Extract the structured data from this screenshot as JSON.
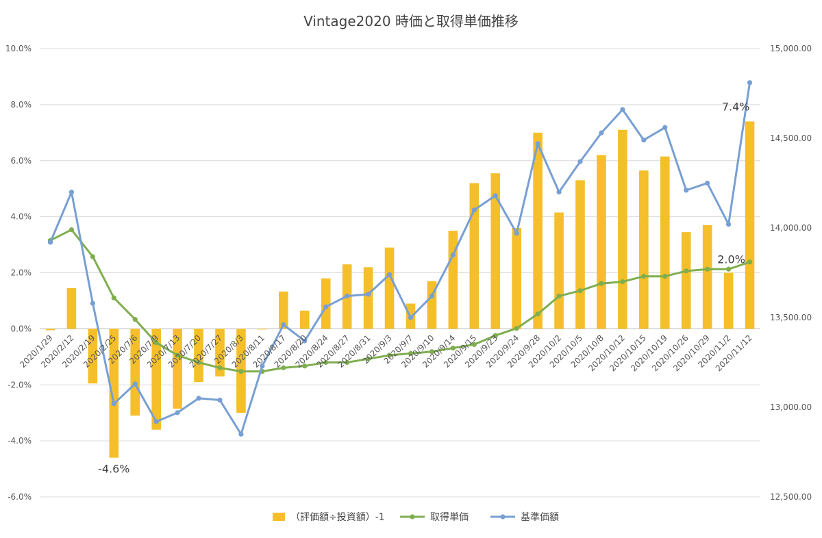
{
  "chart_data": {
    "type": "bar+line",
    "title": "Vintage2020 時価と取得単価推移",
    "categories": [
      "2020/1/29",
      "2020/2/12",
      "2020/2/19",
      "2020/2/25",
      "2020/7/6",
      "2020/7/9",
      "2020/7/13",
      "2020/7/20",
      "2020/7/27",
      "2020/8/3",
      "2020/8/11",
      "2020/8/17",
      "2020/8/20",
      "2020/8/24",
      "2020/8/27",
      "2020/8/31",
      "2020/9/3",
      "2020/9/7",
      "2020/9/10",
      "2020/9/14",
      "2020/9/15",
      "2020/9/23",
      "2020/9/24",
      "2020/9/28",
      "2020/10/2",
      "2020/10/5",
      "2020/10/8",
      "2020/10/12",
      "2020/10/15",
      "2020/10/19",
      "2020/10/26",
      "2020/10/29",
      "2020/11/2",
      "2020/11/12"
    ],
    "left_axis": {
      "ylim": [
        -0.06,
        0.1
      ],
      "ticks": [
        "-6.0%",
        "-4.0%",
        "-2.0%",
        "0.0%",
        "2.0%",
        "4.0%",
        "6.0%",
        "8.0%",
        "10.0%"
      ],
      "tick_values": [
        -0.06,
        -0.04,
        -0.02,
        0,
        0.02,
        0.04,
        0.06,
        0.08,
        0.1
      ]
    },
    "right_axis": {
      "ylim": [
        12500,
        15000
      ],
      "ticks": [
        "12,500.00",
        "13,000.00",
        "13,500.00",
        "14,000.00",
        "14,500.00",
        "15,000.00"
      ],
      "tick_values": [
        12500,
        13000,
        13500,
        14000,
        14500,
        15000
      ]
    },
    "grid": true,
    "legend_position": "bottom",
    "series": [
      {
        "name": "（評価額÷投資額）-1",
        "kind": "bar",
        "axis": "left",
        "color": "#f4bf2a",
        "values": [
          -0.0005,
          0.0145,
          -0.0195,
          -0.046,
          -0.031,
          -0.036,
          -0.0285,
          -0.019,
          -0.017,
          -0.03,
          0.0,
          0.0133,
          0.0065,
          0.018,
          0.023,
          0.022,
          0.029,
          0.009,
          0.017,
          0.035,
          0.052,
          0.0555,
          0.036,
          0.07,
          0.0415,
          0.053,
          0.062,
          0.071,
          0.0565,
          0.0615,
          0.0345,
          0.037,
          0.02,
          0.074
        ]
      },
      {
        "name": "取得単価",
        "kind": "line",
        "axis": "right",
        "color": "#7fae4f",
        "values": [
          13930,
          13990,
          13840,
          13610,
          13490,
          13360,
          13290,
          13250,
          13220,
          13200,
          13200,
          13220,
          13230,
          13250,
          13250,
          13270,
          13290,
          13300,
          13310,
          13330,
          13350,
          13400,
          13440,
          13520,
          13620,
          13650,
          13690,
          13700,
          13730,
          13730,
          13760,
          13770,
          13770,
          13810
        ]
      },
      {
        "name": "基準価額",
        "kind": "line",
        "axis": "right",
        "color": "#779fd3",
        "values": [
          13920,
          14200,
          13580,
          13020,
          13130,
          12920,
          12970,
          13050,
          13040,
          12850,
          13230,
          13460,
          13370,
          13560,
          13620,
          13630,
          13740,
          13500,
          13620,
          13850,
          14100,
          14180,
          13970,
          14470,
          14200,
          14370,
          14530,
          14660,
          14490,
          14560,
          14210,
          14250,
          14020,
          14810
        ]
      }
    ],
    "annotations": [
      "-4.6%",
      "2.0%",
      "7.4%"
    ]
  }
}
